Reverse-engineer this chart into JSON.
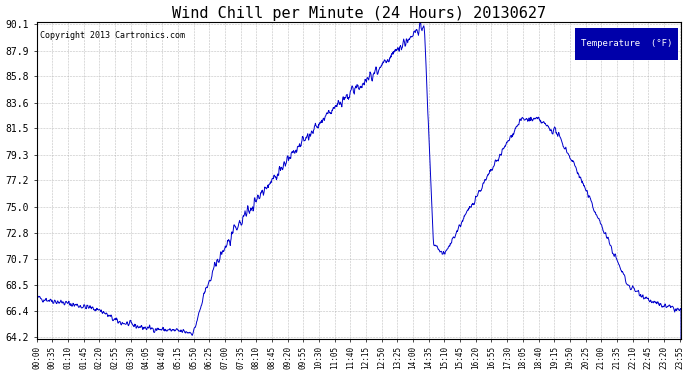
{
  "title": "Wind Chill per Minute (24 Hours) 20130627",
  "copyright": "Copyright 2013 Cartronics.com",
  "legend_label": "Temperature  (°F)",
  "yticks": [
    64.2,
    66.4,
    68.5,
    70.7,
    72.8,
    75.0,
    77.2,
    79.3,
    81.5,
    83.6,
    85.8,
    87.9,
    90.1
  ],
  "ymin": 64.2,
  "ymax": 90.1,
  "line_color": "#0000cc",
  "background_color": "#ffffff",
  "grid_color": "#b0b0b0",
  "title_fontsize": 11,
  "copyright_fontsize": 6,
  "legend_bg": "#0000aa",
  "legend_fg": "#ffffff",
  "tick_fontsize": 5.5,
  "ytick_fontsize": 7
}
